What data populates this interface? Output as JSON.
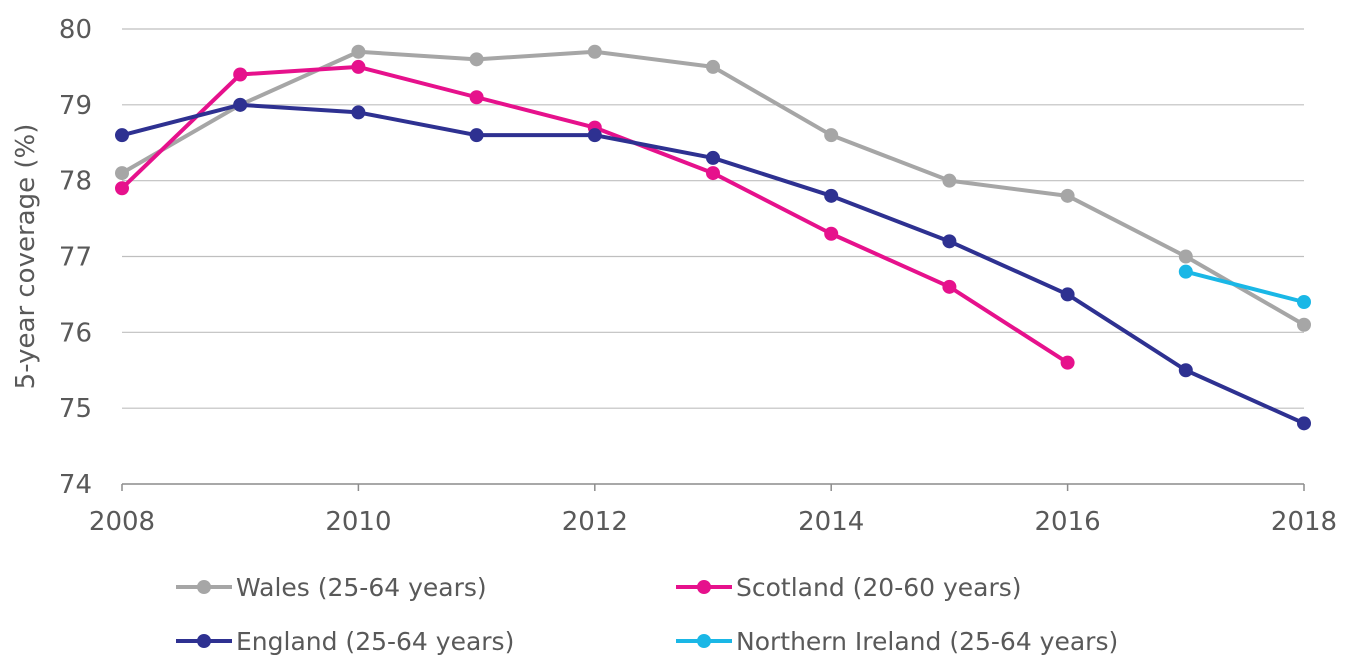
{
  "chart_data": {
    "type": "line",
    "title": "",
    "xlabel": "",
    "ylabel": "5-year coverage (%)",
    "xlim": [
      2008,
      2018
    ],
    "ylim": [
      74,
      80
    ],
    "x_ticks": [
      "2008",
      "2010",
      "2012",
      "2014",
      "2016",
      "2018"
    ],
    "y_ticks": [
      "74",
      "75",
      "76",
      "77",
      "78",
      "79",
      "80"
    ],
    "grid": "horizontal",
    "legend_position": "bottom",
    "series": [
      {
        "name": "Wales (25-64 years)",
        "color": "#a6a6a6",
        "points": [
          [
            2008,
            78.1
          ],
          [
            2009,
            79.0
          ],
          [
            2010,
            79.7
          ],
          [
            2011,
            79.6
          ],
          [
            2012,
            79.7
          ],
          [
            2013,
            79.5
          ],
          [
            2014,
            78.6
          ],
          [
            2015,
            78.0
          ],
          [
            2016,
            77.8
          ],
          [
            2017,
            77.0
          ],
          [
            2018,
            76.1
          ]
        ]
      },
      {
        "name": "Scotland (20-60 years)",
        "color": "#e6118c",
        "points": [
          [
            2008,
            77.9
          ],
          [
            2009,
            79.4
          ],
          [
            2010,
            79.5
          ],
          [
            2011,
            79.1
          ],
          [
            2012,
            78.7
          ],
          [
            2013,
            78.1
          ],
          [
            2014,
            77.3
          ],
          [
            2015,
            76.6
          ],
          [
            2016,
            75.6
          ]
        ]
      },
      {
        "name": "England (25-64 years)",
        "color": "#2e3191",
        "points": [
          [
            2008,
            78.6
          ],
          [
            2009,
            79.0
          ],
          [
            2010,
            78.9
          ],
          [
            2011,
            78.6
          ],
          [
            2012,
            78.6
          ],
          [
            2013,
            78.3
          ],
          [
            2014,
            77.8
          ],
          [
            2015,
            77.2
          ],
          [
            2016,
            76.5
          ],
          [
            2017,
            75.5
          ],
          [
            2018,
            74.8
          ]
        ]
      },
      {
        "name": "Northern Ireland (25-64 years)",
        "color": "#1ab7e6",
        "points": [
          [
            2017,
            76.8
          ],
          [
            2018,
            76.4
          ]
        ]
      }
    ]
  }
}
